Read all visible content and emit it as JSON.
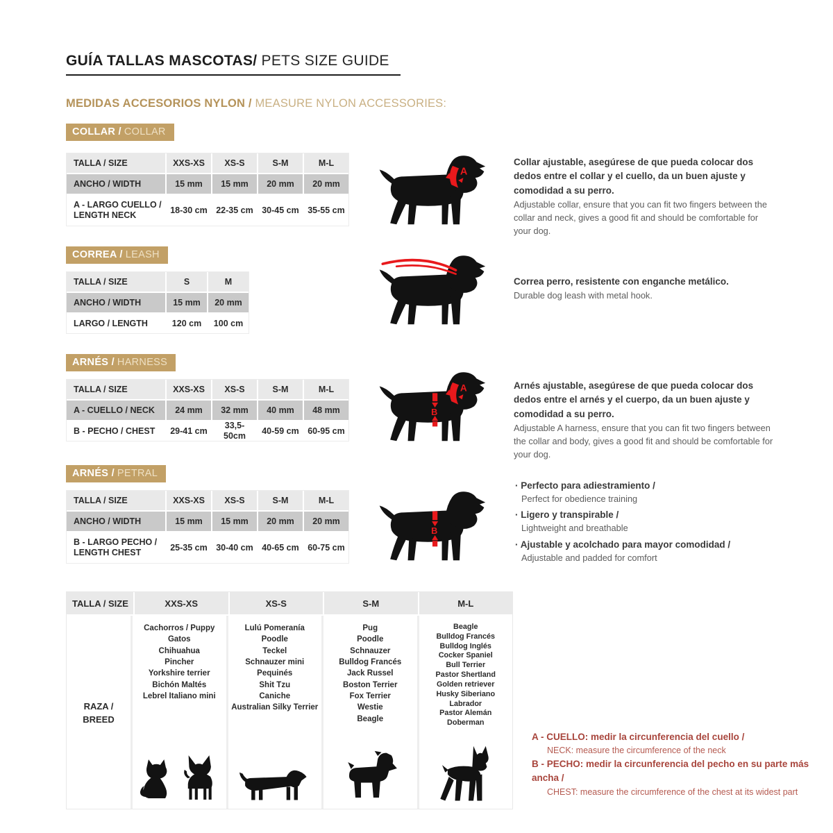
{
  "page": {
    "title_bold": "GUÍA TALLAS MASCOTAS/",
    "title_light": " PETS SIZE GUIDE",
    "subtitle_bold": "MEDIDAS ACCESORIOS NYLON / ",
    "subtitle_light": "MEASURE NYLON ACCESSORIES:"
  },
  "annotations": {
    "letter_a": "A",
    "letter_b": "B"
  },
  "collar": {
    "badge_bold": "COLLAR /",
    "badge_light": "COLLAR",
    "table": {
      "size_label": "TALLA / SIZE",
      "sizes": [
        "XXS-XS",
        "XS-S",
        "S-M",
        "M-L"
      ],
      "rows": [
        {
          "label": "ANCHO / WIDTH",
          "values": [
            "15 mm",
            "15 mm",
            "20 mm",
            "20 mm"
          ]
        },
        {
          "label": "A - LARGO CUELLO / LENGTH NECK",
          "values": [
            "18-30 cm",
            "22-35 cm",
            "30-45 cm",
            "35-55 cm"
          ]
        }
      ]
    },
    "desc_bold": "Collar ajustable, asegúrese de que pueda colocar dos dedos entre el collar y el cuello, da un buen ajuste y comodidad a su perro.",
    "desc_light": "Adjustable collar, ensure that you can fit two fingers between the collar and neck, gives a good fit and should be comfortable for your dog."
  },
  "leash": {
    "badge_bold": "CORREA /",
    "badge_light": "LEASH",
    "table": {
      "size_label": "TALLA / SIZE",
      "sizes": [
        "S",
        "M"
      ],
      "rows": [
        {
          "label": "ANCHO / WIDTH",
          "values": [
            "15 mm",
            "20 mm"
          ]
        },
        {
          "label": "LARGO / LENGTH",
          "values": [
            "120 cm",
            "100 cm"
          ]
        }
      ]
    },
    "desc_bold": "Correa perro, resistente con enganche metálico.",
    "desc_light": "Durable dog leash with metal hook."
  },
  "harness": {
    "badge_bold": "ARNÉS /",
    "badge_light": "HARNESS",
    "table": {
      "size_label": "TALLA / SIZE",
      "sizes": [
        "XXS-XS",
        "XS-S",
        "S-M",
        "M-L"
      ],
      "rows": [
        {
          "label": "A - CUELLO / NECK",
          "values": [
            "24 mm",
            "32 mm",
            "40 mm",
            "48 mm"
          ]
        },
        {
          "label": "B - PECHO / CHEST",
          "values": [
            "29-41 cm",
            "33,5-50cm",
            "40-59 cm",
            "60-95 cm"
          ]
        }
      ]
    },
    "desc_bold": "Arnés ajustable, asegúrese de que pueda colocar dos dedos entre el arnés y el cuerpo, da un buen ajuste y comodidad a su perro.",
    "desc_light": "Adjustable A harness, ensure that you can fit two fingers between the collar and body, gives a good fit and should be comfortable for your dog."
  },
  "petral": {
    "badge_bold": "ARNÉS /",
    "badge_light": "PETRAL",
    "table": {
      "size_label": "TALLA / SIZE",
      "sizes": [
        "XXS-XS",
        "XS-S",
        "S-M",
        "M-L"
      ],
      "rows": [
        {
          "label": "ANCHO / WIDTH",
          "values": [
            "15 mm",
            "15 mm",
            "20 mm",
            "20 mm"
          ]
        },
        {
          "label": "B - LARGO PECHO / LENGTH CHEST",
          "values": [
            "25-35 cm",
            "30-40 cm",
            "40-65 cm",
            "60-75 cm"
          ]
        }
      ]
    },
    "bullets": [
      {
        "bold": "Perfecto para adiestramiento /",
        "light": "Perfect for obedience training"
      },
      {
        "bold": "Ligero y transpirable /",
        "light": "Lightweight and breathable"
      },
      {
        "bold": "Ajustable y acolchado para mayor comodidad /",
        "light": "Adjustable and padded for comfort"
      }
    ]
  },
  "breeds": {
    "size_label": "TALLA /  SIZE",
    "row_label": "RAZA /\nBREED",
    "columns": [
      {
        "size": "XXS-XS",
        "breeds": [
          "Cachorros / Puppy",
          "Gatos",
          "Chihuahua",
          "Pincher",
          "Yorkshire terrier",
          "Bichón Maltés",
          "Lebrel Italiano mini"
        ]
      },
      {
        "size": "XS-S",
        "breeds": [
          "Lulú Pomeranía",
          "Poodle",
          "Teckel",
          "Schnauzer mini",
          "Pequinés",
          "Shit Tzu",
          "Caniche",
          "Australian Silky Terrier"
        ]
      },
      {
        "size": "S-M",
        "breeds": [
          "Pug",
          "Poodle",
          "Schnauzer",
          "Bulldog Francés",
          "Jack Russel",
          "Boston Terrier",
          "Fox Terrier",
          "Westie",
          "Beagle"
        ]
      },
      {
        "size": "M-L",
        "breeds": [
          "Beagle",
          "Bulldog Francés",
          "Bulldog Inglés",
          "Cocker Spaniel",
          "Bull Terrier",
          "Pastor Shertland",
          "Golden retriever",
          "Husky Siberiano",
          "Labrador",
          "Pastor Alemán",
          "Doberman"
        ]
      }
    ]
  },
  "notes": [
    {
      "bold": "A - CUELLO: medir la circunferencia del cuello /",
      "light": "NECK: measure the circumference of the neck"
    },
    {
      "bold": "B - PECHO: medir la circunferencia del pecho en su parte más ancha /",
      "light": "CHEST: measure the circumference of the chest at its widest part"
    }
  ],
  "colors": {
    "accent_tan": "#C2A066",
    "mark_red": "#E8191C",
    "note_red": "#A8453C",
    "header_gray": "#E9E9E9",
    "mid_gray": "#C9C9C9"
  }
}
